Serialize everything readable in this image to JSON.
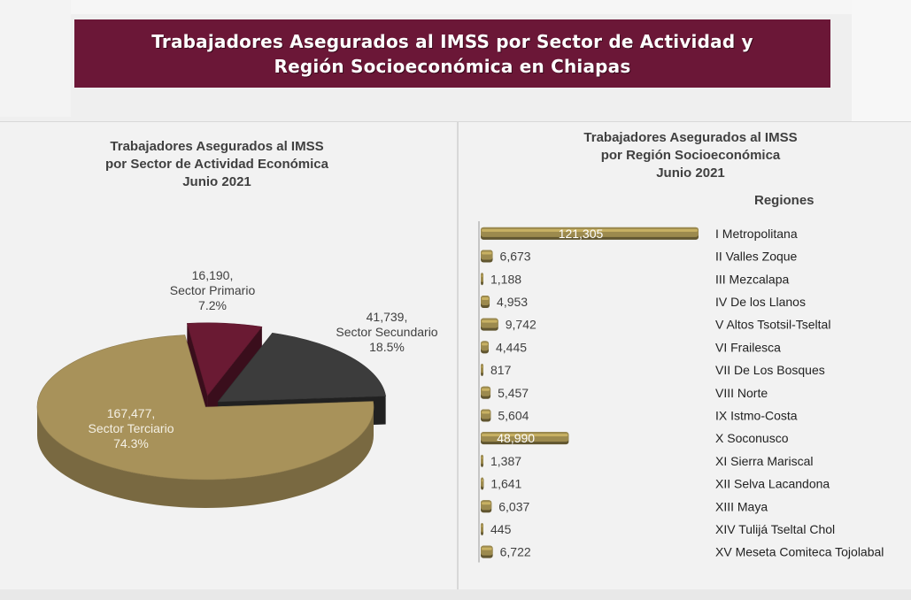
{
  "banner": {
    "title": "Trabajadores Asegurados al IMSS por Sector de Actividad y\nRegión Socioeconómica en Chiapas"
  },
  "colors": {
    "banner": "#6b1737",
    "primario": "#6a1a33",
    "secundario": "#3c3c3c",
    "terciario": "#a8925a",
    "bar": "#9c8a4e"
  },
  "chart_data": [
    {
      "type": "pie",
      "title": "Trabajadores Asegurados al IMSS\npor Sector de Actividad  Económica\nJunio 2021",
      "slices": [
        {
          "label": "Sector Primario",
          "value": 16190,
          "value_text": "16,190,",
          "percent": "7.2%",
          "color": "#6a1a33"
        },
        {
          "label": "Sector Secundario",
          "value": 41739,
          "value_text": "41,739,",
          "percent": "18.5%",
          "color": "#3c3c3c"
        },
        {
          "label": "Sector Terciario",
          "value": 167477,
          "value_text": "167,477,",
          "percent": "74.3%",
          "color": "#a8925a"
        }
      ]
    },
    {
      "type": "bar",
      "orientation": "horizontal",
      "title": "Trabajadores Asegurados al IMSS\npor Región Socioeconómica\nJunio 2021",
      "legend_title": "Regiones",
      "categories": [
        "I Metropolitana",
        "II Valles Zoque",
        "III Mezcalapa",
        "IV De los Llanos",
        "V Altos Tsotsil-Tseltal",
        "VI Frailesca",
        "VII De Los Bosques",
        "VIII Norte",
        "IX Istmo-Costa",
        "X Soconusco",
        "XI Sierra Mariscal",
        "XII Selva Lacandona",
        "XIII Maya",
        "XIV Tulijá Tseltal Chol",
        "XV Meseta Comiteca Tojolabal"
      ],
      "values": [
        121305,
        6673,
        1188,
        4953,
        9742,
        4445,
        817,
        5457,
        5604,
        48990,
        1387,
        1641,
        6037,
        445,
        6722
      ],
      "value_labels": [
        "121,305",
        "6,673",
        "1,188",
        "4,953",
        "9,742",
        "4,445",
        "817",
        "5,457",
        "5,604",
        "48,990",
        "1,387",
        "1,641",
        "6,037",
        "445",
        "6,722"
      ]
    }
  ]
}
